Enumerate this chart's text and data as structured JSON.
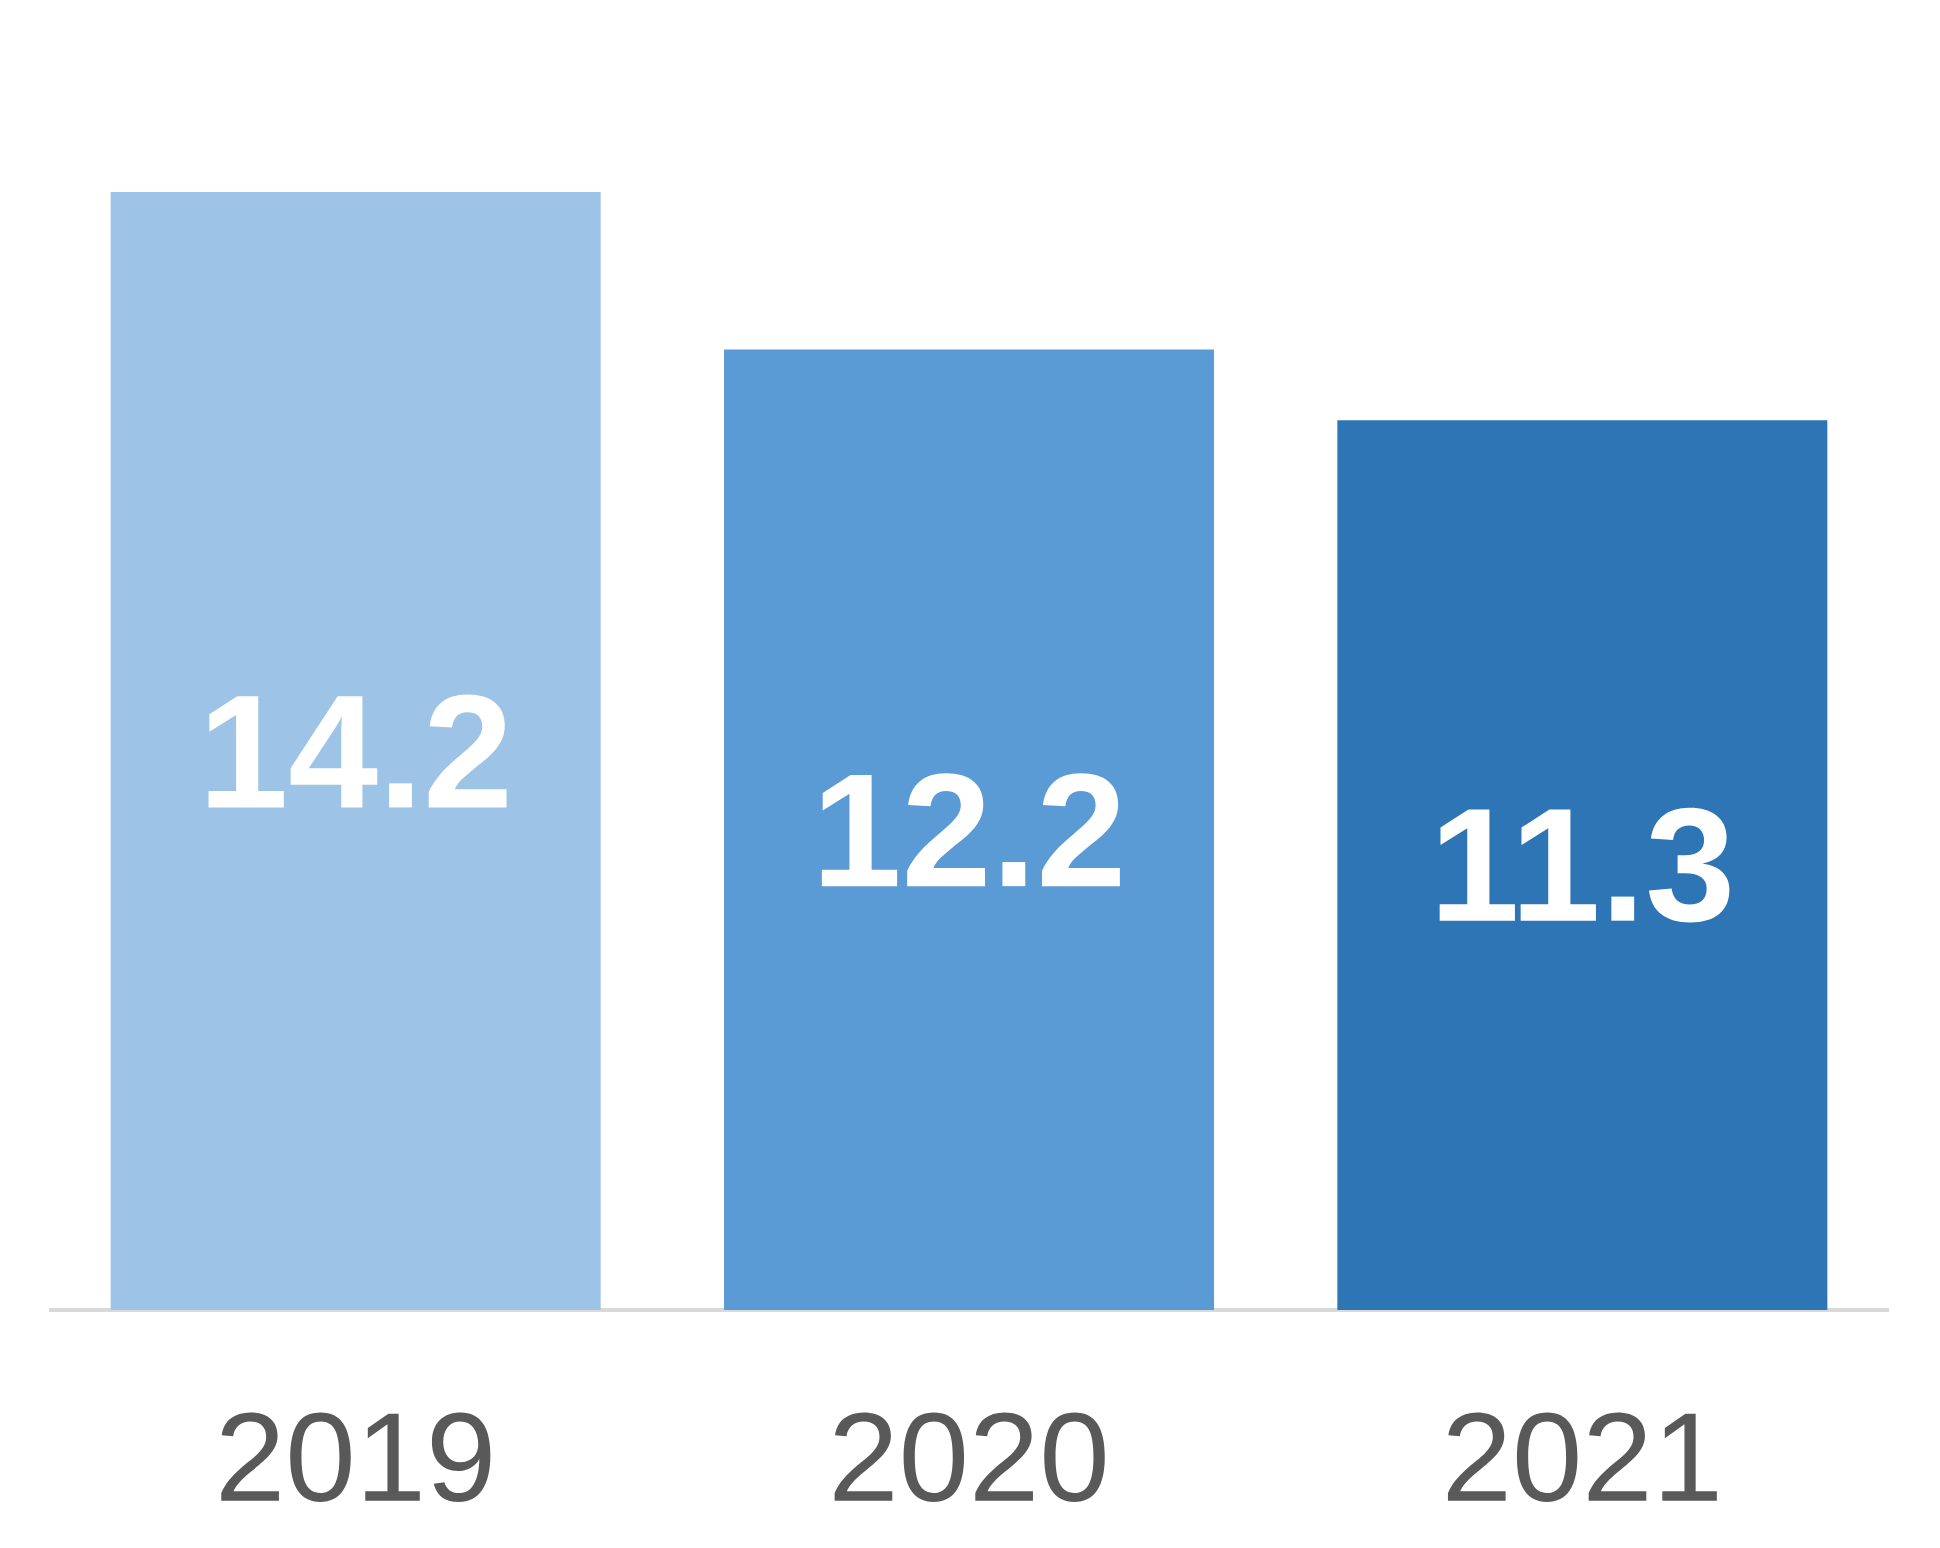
{
  "chart_data": {
    "type": "bar",
    "categories": [
      "2019",
      "2020",
      "2021"
    ],
    "values": [
      14.2,
      12.2,
      11.3
    ],
    "colors": [
      "#9dc3e6",
      "#5b9bd5",
      "#2e75b6"
    ],
    "data_labels": true
  }
}
